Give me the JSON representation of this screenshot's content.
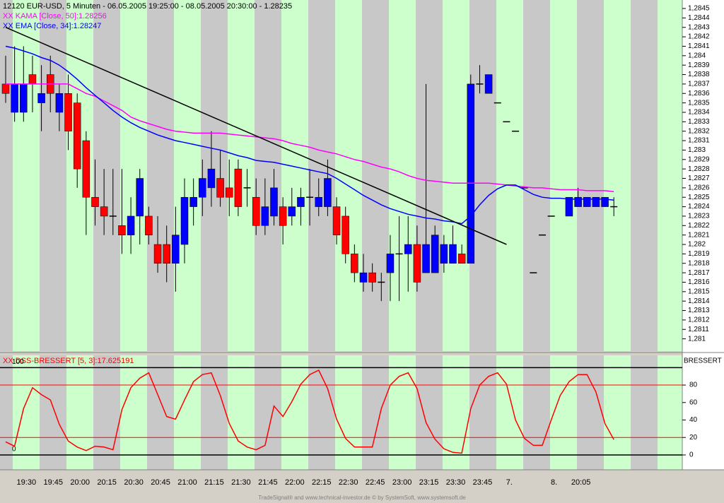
{
  "chart_data": [
    {
      "type": "candlestick",
      "title": "12120  EUR-USD, 5 Minuten - 06.05.2005 19:25:00 - 08.05.2005 20:30:00 - 1.28235",
      "categories": [
        null,
        null,
        "19:30",
        null,
        null,
        "19:45",
        null,
        null,
        "20:00",
        null,
        null,
        "20:15",
        null,
        null,
        "20:30",
        null,
        null,
        "20:45",
        null,
        null,
        "21:00",
        null,
        null,
        "21:15",
        null,
        null,
        "21:30",
        null,
        null,
        "21:45",
        null,
        null,
        "22:00",
        null,
        null,
        "22:15",
        null,
        null,
        "22:30",
        null,
        null,
        "22:45",
        null,
        null,
        "23:00",
        null,
        null,
        "23:15",
        null,
        null,
        "23:30",
        null,
        null,
        "23:45",
        null,
        null,
        "7.",
        null,
        null,
        null,
        null,
        "8.",
        null,
        null,
        "20:05",
        null,
        null,
        null,
        null
      ],
      "open": [
        1.2837,
        1.2834,
        1.2834,
        1.2838,
        1.2835,
        1.2838,
        1.2834,
        1.2836,
        1.2835,
        1.2831,
        1.2825,
        1.2824,
        1.2823,
        1.2822,
        1.2821,
        1.2823,
        1.2823,
        1.282,
        1.282,
        1.2818,
        1.282,
        1.2824,
        1.2825,
        1.2826,
        1.2827,
        1.2826,
        1.2828,
        1.2826,
        1.2825,
        1.2822,
        1.2823,
        1.2824,
        1.2823,
        1.2824,
        1.2825,
        1.2824,
        1.2824,
        1.2824,
        1.2823,
        1.2819,
        1.2816,
        1.2817,
        1.2816,
        1.2817,
        1.2819,
        1.2819,
        1.282,
        1.2817,
        1.2817,
        1.2818,
        1.2818,
        1.2819,
        1.2818,
        1.2837,
        1.2836,
        1.2835,
        1.2833,
        1.2832,
        1.2826,
        1.2817,
        1.2821,
        1.2823,
        null,
        1.2823,
        1.2824,
        1.2824,
        1.2824,
        1.2824,
        1.2824
      ],
      "high": [
        1.284,
        1.2841,
        1.2841,
        1.284,
        1.2839,
        1.284,
        1.2837,
        1.2838,
        1.2836,
        1.2832,
        1.2829,
        1.2828,
        1.2828,
        1.2828,
        1.2825,
        1.2828,
        1.2824,
        1.2823,
        1.2822,
        1.2824,
        1.2827,
        1.2827,
        1.2829,
        1.2832,
        1.283,
        1.2829,
        1.2829,
        1.2828,
        1.2827,
        1.2827,
        1.2828,
        1.2825,
        1.2826,
        1.2826,
        1.2828,
        1.2827,
        1.2829,
        1.2825,
        1.2824,
        1.282,
        1.2819,
        1.2818,
        1.2817,
        1.2821,
        1.2823,
        1.2823,
        1.2822,
        1.2837,
        1.2822,
        1.2821,
        1.2822,
        1.282,
        1.2838,
        1.2839,
        1.2838,
        1.2835,
        1.2833,
        1.2832,
        1.2826,
        1.2817,
        1.2821,
        1.2823,
        null,
        1.2825,
        1.2826,
        1.2825,
        1.2825,
        1.2825,
        1.2825
      ],
      "low": [
        1.2835,
        1.2833,
        1.2833,
        1.2834,
        1.2832,
        1.2834,
        1.2832,
        1.283,
        1.2826,
        1.2821,
        1.2822,
        1.2821,
        1.2821,
        1.2819,
        1.2819,
        1.282,
        1.282,
        1.2817,
        1.2816,
        1.2815,
        1.2818,
        1.2822,
        1.2823,
        1.2824,
        1.2824,
        1.2823,
        1.2823,
        1.2824,
        1.2821,
        1.2821,
        1.2822,
        1.282,
        1.2822,
        1.2822,
        1.2822,
        1.2823,
        1.2823,
        1.282,
        1.2818,
        1.2816,
        1.2815,
        1.2815,
        1.2814,
        1.2814,
        1.2814,
        1.2815,
        1.2815,
        1.2817,
        1.2817,
        1.2817,
        1.2818,
        1.2818,
        1.2818,
        1.2836,
        1.2836,
        1.2835,
        1.2833,
        1.2832,
        1.2826,
        1.2817,
        1.2821,
        1.2823,
        null,
        1.2823,
        1.2824,
        1.2824,
        1.2824,
        1.2824,
        1.2823
      ],
      "close": [
        1.2836,
        1.2837,
        1.2837,
        1.2837,
        1.2836,
        1.2836,
        1.2836,
        1.2832,
        1.2828,
        1.2825,
        1.2824,
        1.2823,
        1.2823,
        1.2821,
        1.2823,
        1.2827,
        1.2821,
        1.2818,
        1.2818,
        1.2821,
        1.2825,
        1.2825,
        1.2827,
        1.2828,
        1.2825,
        1.2825,
        1.2824,
        1.2826,
        1.2822,
        1.2824,
        1.2826,
        1.2822,
        1.2824,
        1.2825,
        1.2825,
        1.2825,
        1.2827,
        1.2821,
        1.2819,
        1.2817,
        1.2817,
        1.2816,
        1.2816,
        1.2819,
        1.2819,
        1.282,
        1.2816,
        1.282,
        1.2821,
        1.282,
        1.282,
        1.2818,
        1.2837,
        1.2837,
        1.2838,
        1.2835,
        1.2833,
        1.2832,
        1.2826,
        1.2817,
        1.2821,
        1.2823,
        null,
        1.2825,
        1.2825,
        1.2825,
        1.2825,
        1.2825,
        1.2824
      ],
      "up_color": "#0000ff",
      "down_color": "#ff0000",
      "series": [
        {
          "name": "XX KAMA [Close, 50]:1.28256",
          "color": "#ff00ff",
          "values": [
            1.2837,
            1.2837,
            1.2837,
            1.2837,
            1.2837,
            1.2837,
            1.2837,
            1.2837,
            1.28365,
            1.2836,
            1.28357,
            1.28352,
            1.28347,
            1.28342,
            1.28335,
            1.28331,
            1.28328,
            1.28325,
            1.28322,
            1.2832,
            1.28319,
            1.28318,
            1.28318,
            1.28318,
            1.28318,
            1.28317,
            1.28316,
            1.28315,
            1.28314,
            1.28313,
            1.28312,
            1.2831,
            1.28307,
            1.28305,
            1.28303,
            1.283,
            1.28298,
            1.28296,
            1.28293,
            1.2829,
            1.28288,
            1.28285,
            1.28282,
            1.2828,
            1.28277,
            1.28273,
            1.2827,
            1.28268,
            1.28267,
            1.28266,
            1.28265,
            1.28265,
            1.28265,
            1.28265,
            1.28265,
            1.28264,
            1.28263,
            1.28262,
            1.28261,
            1.2826,
            1.2826,
            1.28259,
            1.28258,
            1.28258,
            1.28258,
            1.28257,
            1.28257,
            1.28257,
            1.28256
          ]
        },
        {
          "name": "XX EMA [Close, 34]:1.28247",
          "color": "#0000ff",
          "values": [
            1.2841,
            1.28408,
            1.28405,
            1.28402,
            1.28398,
            1.28395,
            1.2839,
            1.28383,
            1.28375,
            1.28366,
            1.28358,
            1.2835,
            1.28342,
            1.28335,
            1.28329,
            1.28324,
            1.2832,
            1.28316,
            1.28313,
            1.2831,
            1.28308,
            1.28306,
            1.28304,
            1.28302,
            1.283,
            1.28297,
            1.28294,
            1.28292,
            1.28289,
            1.28288,
            1.28287,
            1.28285,
            1.28283,
            1.28281,
            1.28279,
            1.28277,
            1.28275,
            1.2827,
            1.28264,
            1.28258,
            1.28252,
            1.28247,
            1.28242,
            1.28238,
            1.28235,
            1.28232,
            1.2823,
            1.28228,
            1.28227,
            1.28225,
            1.28224,
            1.28222,
            1.2823,
            1.28242,
            1.28252,
            1.28259,
            1.28263,
            1.28263,
            1.28258,
            1.28253,
            1.2825,
            1.28249,
            1.28249,
            1.28248,
            1.28248,
            1.28248,
            1.28248,
            1.28248,
            1.28247
          ]
        }
      ],
      "trend_line": {
        "x": [
          0,
          56
        ],
        "values": [
          1.2843,
          1.282
        ],
        "color": "#000000"
      },
      "ylim": [
        1.28087,
        1.28459
      ],
      "yticks": [
        {
          "value": 1.2845,
          "label": "1,2845"
        },
        {
          "value": 1.2844,
          "label": "1,2844"
        },
        {
          "value": 1.2843,
          "label": "1,2843"
        },
        {
          "value": 1.2842,
          "label": "1,2842"
        },
        {
          "value": 1.2841,
          "label": "1,2841"
        },
        {
          "value": 1.284,
          "label": "1,284"
        },
        {
          "value": 1.2839,
          "label": "1,2839"
        },
        {
          "value": 1.2838,
          "label": "1,2838"
        },
        {
          "value": 1.2837,
          "label": "1,2837"
        },
        {
          "value": 1.2836,
          "label": "1,2836"
        },
        {
          "value": 1.2835,
          "label": "1,2835"
        },
        {
          "value": 1.2834,
          "label": "1,2834"
        },
        {
          "value": 1.2833,
          "label": "1,2833"
        },
        {
          "value": 1.2832,
          "label": "1,2832"
        },
        {
          "value": 1.2831,
          "label": "1,2831"
        },
        {
          "value": 1.283,
          "label": "1,283"
        },
        {
          "value": 1.2829,
          "label": "1,2829"
        },
        {
          "value": 1.2828,
          "label": "1,2828"
        },
        {
          "value": 1.2827,
          "label": "1,2827"
        },
        {
          "value": 1.2826,
          "label": "1,2826"
        },
        {
          "value": 1.2825,
          "label": "1,2825"
        },
        {
          "value": 1.2824,
          "label": "1,2824"
        },
        {
          "value": 1.2823,
          "label": "1,2823"
        },
        {
          "value": 1.2822,
          "label": "1,2822"
        },
        {
          "value": 1.2821,
          "label": "1,2821"
        },
        {
          "value": 1.282,
          "label": "1,282"
        },
        {
          "value": 1.2819,
          "label": "1,2819"
        },
        {
          "value": 1.2818,
          "label": "1,2818"
        },
        {
          "value": 1.2817,
          "label": "1,2817"
        },
        {
          "value": 1.2816,
          "label": "1,2816"
        },
        {
          "value": 1.2815,
          "label": "1,2815"
        },
        {
          "value": 1.2814,
          "label": "1,2814"
        },
        {
          "value": 1.2813,
          "label": "1,2813"
        },
        {
          "value": 1.2812,
          "label": "1,2812"
        },
        {
          "value": 1.2811,
          "label": "1,2811"
        },
        {
          "value": 1.281,
          "label": "1,281"
        }
      ]
    },
    {
      "type": "line",
      "title": "XX DSS-BRESSERT [5, 3]:17.625191",
      "axis_caption": "BRESSERT",
      "series": [
        {
          "color": "#ff0000",
          "values": [
            15,
            10,
            53,
            77,
            69,
            63,
            35,
            16,
            9,
            5,
            10,
            9,
            6,
            52,
            77,
            88,
            94,
            69,
            44,
            41,
            63,
            84,
            92,
            94,
            68,
            36,
            16,
            9,
            6,
            11,
            56,
            44,
            61,
            81,
            92,
            97,
            76,
            41,
            19,
            9,
            9,
            9,
            53,
            80,
            90,
            94,
            76,
            37,
            18,
            7,
            3,
            2,
            53,
            80,
            90,
            94,
            81,
            40,
            19,
            11,
            11,
            40,
            68,
            84,
            92,
            92,
            72,
            36,
            17.625191
          ]
        }
      ],
      "ylim": [
        -17,
        114
      ],
      "yticks": [
        0,
        20,
        40,
        60,
        80
      ],
      "left_ticks": [
        100,
        0
      ],
      "levels": [
        {
          "value": 100,
          "color": "#000000"
        },
        {
          "value": 80,
          "color": "#ff0000"
        },
        {
          "value": 20,
          "color": "#ff0000"
        },
        {
          "value": 0,
          "color": "#000000"
        }
      ]
    }
  ],
  "footer": "TradeSignal® and www.technical-investor.de © by SystemSoft, www.systemsoft.de"
}
